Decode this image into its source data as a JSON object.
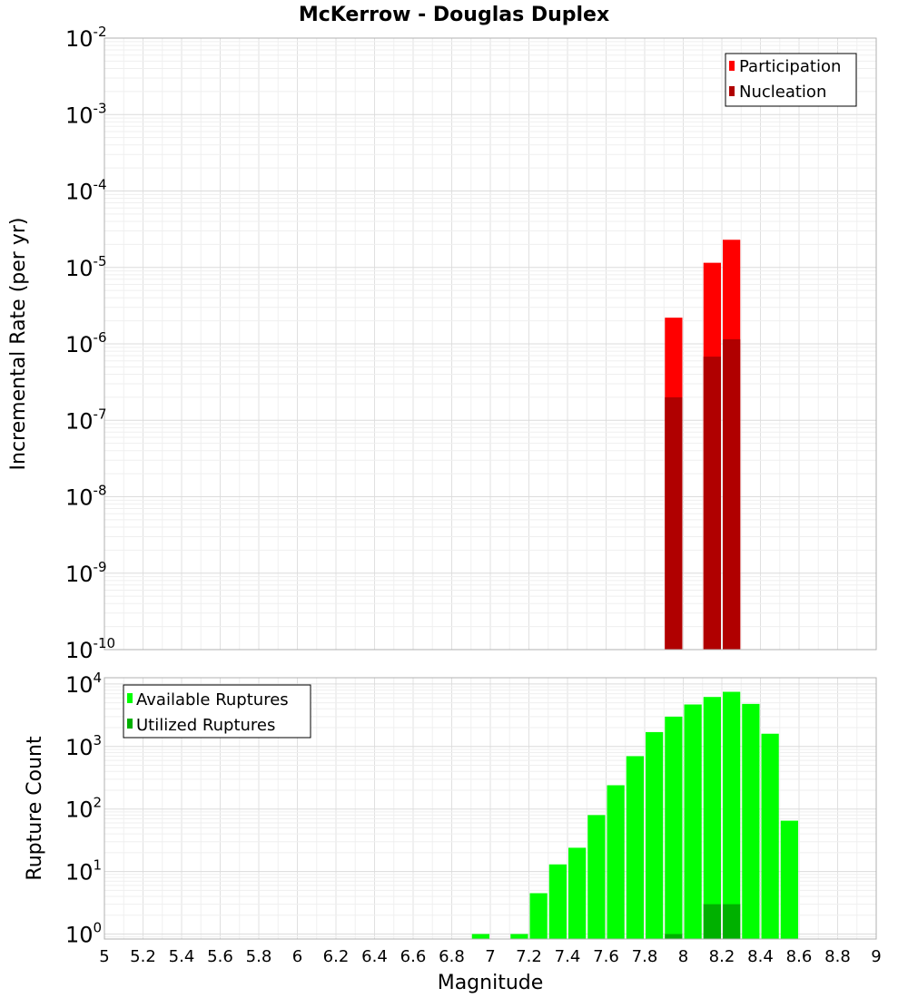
{
  "title": "McKerrow - Douglas Duplex",
  "colors": {
    "participation": "#ff0000",
    "nucleation": "#b00000",
    "available": "#00ff00",
    "utilized": "#00b000",
    "grid": "#e8e8e8",
    "frame": "#b0b0b0"
  },
  "chart_data": [
    {
      "type": "bar",
      "name": "incremental-rate",
      "title": "McKerrow - Douglas Duplex",
      "ylabel": "Incremental Rate (per yr)",
      "xlabel": "",
      "yscale": "log",
      "ylim_exp": [
        -10,
        -2
      ],
      "y_ticks": [
        {
          "base": "10",
          "exp": "-2"
        },
        {
          "base": "10",
          "exp": "-3"
        },
        {
          "base": "10",
          "exp": "-4"
        },
        {
          "base": "10",
          "exp": "-5"
        },
        {
          "base": "10",
          "exp": "-6"
        },
        {
          "base": "10",
          "exp": "-7"
        },
        {
          "base": "10",
          "exp": "-8"
        },
        {
          "base": "10",
          "exp": "-9"
        },
        {
          "base": "10",
          "exp": "-10"
        }
      ],
      "legend": {
        "position": "top-right",
        "entries": [
          "Participation",
          "Nucleation"
        ]
      },
      "series": [
        {
          "name": "Participation",
          "x": [
            7.95,
            8.15,
            8.25
          ],
          "values": [
            2.2e-06,
            1.15e-05,
            2.3e-05
          ]
        },
        {
          "name": "Nucleation",
          "x": [
            7.95,
            8.15,
            8.25
          ],
          "values": [
            2e-07,
            6.8e-07,
            1.15e-06
          ]
        }
      ]
    },
    {
      "type": "bar",
      "name": "rupture-count",
      "ylabel": "Rupture Count",
      "xlabel": "Magnitude",
      "yscale": "log",
      "ylim_exp": [
        -0.08,
        4.1
      ],
      "y_ticks": [
        {
          "base": "10",
          "exp": "4"
        },
        {
          "base": "10",
          "exp": "3"
        },
        {
          "base": "10",
          "exp": "2"
        },
        {
          "base": "10",
          "exp": "1"
        },
        {
          "base": "10",
          "exp": "0"
        }
      ],
      "legend": {
        "position": "top-left",
        "entries": [
          "Available Ruptures",
          "Utilized Ruptures"
        ]
      },
      "series": [
        {
          "name": "Available Ruptures",
          "x": [
            6.95,
            7.15,
            7.25,
            7.35,
            7.45,
            7.55,
            7.65,
            7.75,
            7.85,
            7.95,
            8.05,
            8.15,
            8.25,
            8.35,
            8.45,
            8.55
          ],
          "values": [
            1,
            1,
            4.5,
            13,
            24,
            80,
            240,
            700,
            1700,
            3000,
            4700,
            6200,
            7500,
            4800,
            1600,
            65
          ]
        },
        {
          "name": "Utilized Ruptures",
          "x": [
            7.95,
            8.15,
            8.25
          ],
          "values": [
            1,
            3,
            3
          ]
        }
      ]
    }
  ],
  "x_axis": {
    "min": 5,
    "max": 9,
    "bin_width": 0.1,
    "tick_labels": [
      "5",
      "5.2",
      "5.4",
      "5.6",
      "5.8",
      "6",
      "6.2",
      "6.4",
      "6.6",
      "6.8",
      "7",
      "7.2",
      "7.4",
      "7.6",
      "7.8",
      "8",
      "8.2",
      "8.4",
      "8.6",
      "8.8",
      "9"
    ]
  }
}
